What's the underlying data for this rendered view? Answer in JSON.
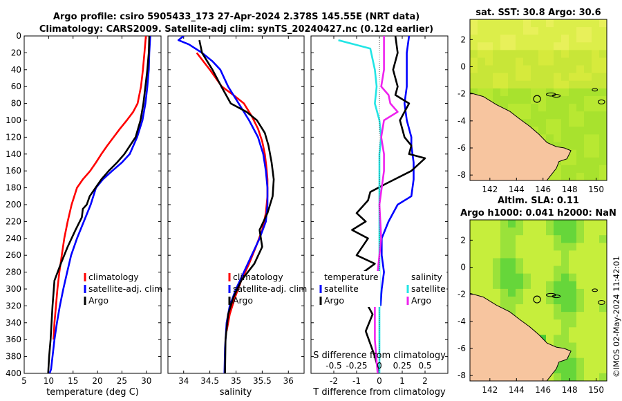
{
  "titles": {
    "line1": "Argo profile: csiro 5905433_173 27-Apr-2024 2.378S 145.55E (NRT data)",
    "line2": "Climatology: CARS2009. Satellite-adj clim: synTS_20240427.nc (0.12d earlier)",
    "sst": "sat. SST: 30.8 Argo: 30.6",
    "sla1": "Altim. SLA: 0.11",
    "sla2": "Argo h1000: 0.041 h2000: NaN",
    "watermark": "©IMOS 02-May-2024 11:42:01"
  },
  "colors": {
    "clim": "#ff0000",
    "sat": "#0000ff",
    "argo": "#000000",
    "sat_salt": "#22e5e5",
    "argo_salt": "#ee22ee",
    "land": "#f7c59f"
  },
  "chart_data": [
    {
      "type": "line",
      "title": "",
      "xlabel": "temperature (deg C)",
      "ylabel": "",
      "xlim": [
        5,
        33
      ],
      "ylim": [
        400,
        0
      ],
      "xticks": [
        5,
        10,
        15,
        20,
        25,
        30
      ],
      "yticks": [
        0,
        20,
        40,
        60,
        80,
        100,
        120,
        140,
        160,
        180,
        200,
        220,
        240,
        260,
        280,
        300,
        320,
        340,
        360,
        380,
        400
      ],
      "legend": [
        "climatology",
        "satellite-adj. clim",
        "Argo"
      ],
      "series": [
        {
          "name": "climatology",
          "x": [
            29.9,
            29.6,
            29.3,
            28.9,
            28.2,
            27.3,
            26.0,
            24.6,
            23.3,
            22.0,
            20.8,
            19.7,
            18.5,
            17.0,
            15.8,
            14.7,
            13.9,
            13.2,
            12.7,
            12.2,
            11.8,
            11.5,
            11.2,
            11.0
          ],
          "y": [
            0,
            20,
            40,
            60,
            80,
            90,
            100,
            110,
            120,
            130,
            140,
            150,
            160,
            170,
            180,
            200,
            220,
            240,
            260,
            280,
            300,
            320,
            340,
            360
          ]
        },
        {
          "name": "satellite-adj. clim",
          "x": [
            30.8,
            30.6,
            30.5,
            30.2,
            29.8,
            29.2,
            28.1,
            26.6,
            25.0,
            23.0,
            21.1,
            19.7,
            18.6,
            17.2,
            15.8,
            14.6,
            13.8,
            13.0,
            12.3,
            11.7,
            11.2,
            10.8,
            10.5,
            10.2
          ],
          "y": [
            0,
            20,
            40,
            60,
            80,
            100,
            120,
            140,
            150,
            160,
            170,
            180,
            200,
            220,
            240,
            260,
            280,
            300,
            320,
            340,
            360,
            380,
            395,
            400
          ]
        },
        {
          "name": "Argo",
          "x": [
            30.6,
            30.5,
            30.2,
            29.8,
            29.4,
            28.8,
            27.8,
            25.5,
            24.0,
            22.3,
            20.8,
            19.6,
            18.4,
            17.8,
            17.0,
            16.8,
            15.5,
            13.9,
            12.5,
            11.2,
            10.8,
            10.6,
            10.4,
            10.1,
            9.9
          ],
          "y": [
            0,
            20,
            40,
            60,
            80,
            100,
            120,
            140,
            150,
            160,
            170,
            180,
            190,
            200,
            205,
            215,
            230,
            250,
            270,
            290,
            320,
            340,
            360,
            380,
            400
          ]
        }
      ]
    },
    {
      "type": "line",
      "title": "",
      "xlabel": "salinity",
      "ylabel": "",
      "xlim": [
        33.7,
        36.3
      ],
      "ylim": [
        400,
        0
      ],
      "xticks": [
        34,
        34.5,
        35,
        35.5,
        36
      ],
      "xticklabels": [
        "34",
        "34.5",
        "35",
        "35.5",
        "36"
      ],
      "legend": [
        "climatology",
        "satellite-adj. clim",
        "Argo"
      ],
      "series": [
        {
          "name": "climatology",
          "x": [
            34.25,
            34.5,
            34.73,
            34.95,
            35.15,
            35.3,
            35.42,
            35.5,
            35.55,
            35.58,
            35.6,
            35.6,
            35.57,
            35.5,
            35.38,
            35.25,
            35.1,
            34.98,
            34.88,
            34.82
          ],
          "y": [
            20,
            40,
            60,
            70,
            80,
            95,
            110,
            125,
            140,
            155,
            170,
            190,
            210,
            230,
            250,
            270,
            290,
            310,
            330,
            350
          ]
        },
        {
          "name": "satellite-adj. clim",
          "x": [
            34.0,
            33.9,
            34.1,
            34.35,
            34.55,
            34.7,
            34.85,
            35.05,
            35.25,
            35.42,
            35.52,
            35.57,
            35.6,
            35.6,
            35.57,
            35.45,
            35.3,
            35.15,
            35.0,
            34.88,
            34.82,
            34.79,
            34.78
          ],
          "y": [
            0,
            5,
            10,
            20,
            30,
            40,
            60,
            80,
            100,
            120,
            140,
            160,
            180,
            200,
            220,
            240,
            260,
            280,
            300,
            320,
            340,
            370,
            400
          ]
        },
        {
          "name": "Argo",
          "x": [
            34.3,
            34.35,
            34.55,
            34.72,
            34.9,
            35.2,
            35.4,
            35.55,
            35.62,
            35.68,
            35.72,
            35.7,
            35.6,
            35.45,
            35.5,
            35.35,
            35.1,
            34.95,
            34.85,
            34.8,
            34.79
          ],
          "y": [
            5,
            20,
            40,
            60,
            80,
            90,
            100,
            115,
            130,
            150,
            170,
            190,
            210,
            230,
            250,
            270,
            290,
            310,
            330,
            360,
            400
          ]
        }
      ]
    },
    {
      "type": "line",
      "title": "",
      "xlabel": "T difference from climatology",
      "ylabel": "",
      "xlim": [
        -3,
        3
      ],
      "ylim": [
        400,
        0
      ],
      "xticks": [
        -2,
        -1,
        0,
        1,
        2
      ],
      "top_axis_label": "S difference from climatology",
      "top_ticks": [
        -0.5,
        -0.25,
        0,
        0.25,
        0.5
      ],
      "top_ticklabels": [
        "-0.5",
        "-0.25",
        "0",
        "0.25",
        "0.5"
      ],
      "legend_temperature_heading": "temperature",
      "legend_salinity_heading": "salinity",
      "legend": [
        "satellite",
        "Argo"
      ],
      "series": [
        {
          "name": "T satellite",
          "x": [
            1.3,
            1.2,
            1.2,
            1.2,
            1.1,
            1.2,
            1.4,
            1.4,
            1.5,
            1.5,
            1.4,
            0.8,
            0.4,
            0.1,
            0.1,
            0.2,
            0.1,
            0.05
          ],
          "y": [
            0,
            20,
            40,
            60,
            80,
            100,
            120,
            130,
            150,
            170,
            190,
            200,
            220,
            240,
            260,
            280,
            300,
            320
          ]
        },
        {
          "name": "T Argo",
          "x": [
            0.7,
            0.8,
            0.6,
            0.8,
            0.7,
            1.3,
            0.9,
            1.1,
            1.4,
            1.3,
            2.0,
            1.4,
            0.3,
            -0.4,
            -0.5,
            -1.0,
            -0.6,
            -1.2,
            -0.5,
            -1.0,
            -0.2,
            -1.2,
            -0.7,
            -0.3,
            -0.6,
            -0.2,
            0.0
          ],
          "y": [
            0,
            20,
            40,
            60,
            70,
            80,
            100,
            120,
            130,
            140,
            145,
            160,
            175,
            185,
            195,
            210,
            220,
            230,
            240,
            260,
            270,
            290,
            310,
            330,
            350,
            380,
            400
          ]
        },
        {
          "name": "S satellite",
          "x": [
            -0.45,
            -0.1,
            -0.05,
            -0.03,
            -0.05,
            0.0,
            0.02,
            0.0,
            0.0,
            0.0,
            0.0,
            0.0,
            0.0,
            0.0,
            0.0
          ],
          "y": [
            5,
            15,
            40,
            60,
            80,
            100,
            120,
            140,
            160,
            200,
            240,
            280,
            320,
            360,
            400
          ]
        },
        {
          "name": "S Argo",
          "x": [
            0.05,
            0.05,
            0.02,
            0.1,
            0.12,
            0.2,
            0.05,
            0.02,
            0.05,
            0.05,
            0.0,
            0.02,
            -0.02,
            -0.05,
            -0.05,
            -0.02
          ],
          "y": [
            0,
            40,
            60,
            70,
            80,
            90,
            100,
            120,
            140,
            160,
            200,
            240,
            280,
            320,
            360,
            400
          ]
        }
      ]
    },
    {
      "type": "heatmap",
      "title": "sat. SST: 30.8 Argo: 30.6",
      "xlim": [
        140.5,
        150.8
      ],
      "ylim": [
        -8.4,
        3.5
      ],
      "xticks": [
        142,
        144,
        146,
        148,
        150
      ],
      "yticks": [
        2,
        0,
        -2,
        -4,
        -6,
        -8
      ],
      "marker": {
        "lon": 145.55,
        "lat": -2.378
      }
    },
    {
      "type": "heatmap",
      "title": "Altim. SLA: 0.11",
      "subtitle": "Argo h1000: 0.041 h2000: NaN",
      "xlim": [
        140.5,
        150.8
      ],
      "ylim": [
        -8.4,
        3.5
      ],
      "xticks": [
        142,
        144,
        146,
        148,
        150
      ],
      "yticks": [
        2,
        0,
        -2,
        -4,
        -6,
        -8
      ],
      "marker": {
        "lon": 145.55,
        "lat": -2.378
      }
    }
  ]
}
